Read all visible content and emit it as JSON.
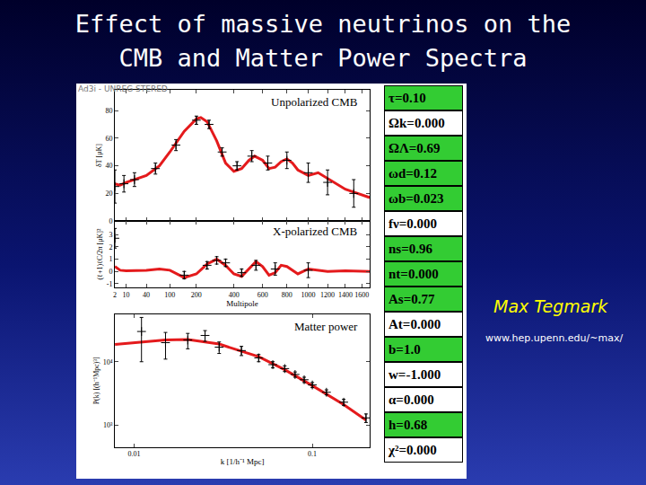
{
  "slide": {
    "title": [
      "Effect of massive neutrinos on the",
      "CMB and Matter Power Spectra"
    ],
    "author": "Max Tegmark",
    "url": "www.hep.upenn.edu/~max/",
    "watermark": "Ad3i - UNREG STERED",
    "parameters": [
      {
        "label": "τ=0.10",
        "color": "#33cc33"
      },
      {
        "label": "Ωk=0.000",
        "color": "#ffffff"
      },
      {
        "label": "ΩΛ=0.69",
        "color": "#33cc33"
      },
      {
        "label": "ωd=0.12",
        "color": "#33cc33"
      },
      {
        "label": "ωb=0.023",
        "color": "#33cc33"
      },
      {
        "label": "fν=0.000",
        "color": "#ffffff"
      },
      {
        "label": "ns=0.96",
        "color": "#33cc33"
      },
      {
        "label": "nt=0.000",
        "color": "#33cc33"
      },
      {
        "label": "As=0.77",
        "color": "#33cc33"
      },
      {
        "label": "At=0.000",
        "color": "#ffffff"
      },
      {
        "label": "b=1.0",
        "color": "#33cc33"
      },
      {
        "label": "w=-1.000",
        "color": "#ffffff"
      },
      {
        "label": "α=0.000",
        "color": "#ffffff"
      },
      {
        "label": "h=0.68",
        "color": "#33cc33"
      },
      {
        "label": "χ²=0.000",
        "color": "#ffffff"
      }
    ]
  },
  "chart_data": [
    {
      "type": "line",
      "title": "Unpolarized CMB",
      "y_label": "δT [μK]",
      "tick_labels": "y",
      "xlim": [
        2,
        1700
      ],
      "xticks": [
        2,
        10,
        40,
        100,
        200,
        400,
        600,
        800,
        1000,
        1200,
        1400,
        1600
      ],
      "ylim": [
        0,
        95
      ],
      "yticks": [
        0,
        20,
        40,
        60,
        80
      ],
      "series": [
        {
          "type": "line",
          "color": "#e41a1c",
          "line_style": "solid",
          "x": [
            2,
            5,
            10,
            20,
            40,
            70,
            100,
            150,
            200,
            220,
            250,
            300,
            350,
            400,
            450,
            500,
            540,
            600,
            650,
            700,
            750,
            800,
            850,
            900,
            1000,
            1100,
            1200,
            1300,
            1400,
            1500,
            1600,
            1700
          ],
          "values": [
            27,
            26,
            28,
            30,
            33,
            40,
            50,
            65,
            74,
            75,
            72,
            58,
            42,
            36,
            38,
            44,
            47,
            44,
            38,
            39,
            43,
            45,
            42,
            37,
            33,
            35,
            31,
            27,
            23,
            21,
            19,
            17
          ]
        },
        {
          "type": "scatter",
          "color": "#000000",
          "marker": "cross",
          "x": [
            2,
            8,
            20,
            60,
            120,
            200,
            260,
            330,
            420,
            520,
            640,
            800,
            1000,
            1200,
            1500
          ],
          "values": [
            25,
            27,
            30,
            38,
            55,
            73,
            70,
            50,
            40,
            47,
            42,
            44,
            35,
            28,
            20
          ],
          "error": [
            12,
            6,
            5,
            4,
            4,
            3,
            3,
            3,
            3,
            4,
            5,
            6,
            7,
            9,
            10
          ]
        }
      ]
    },
    {
      "type": "line",
      "title": "X-polarized CMB",
      "x_label": "Multipole",
      "y_label": "(ℓ+1)ℓC/2π [μK]²",
      "xlim": [
        2,
        1700
      ],
      "xticks": [
        2,
        10,
        40,
        100,
        200,
        400,
        600,
        800,
        1000,
        1200,
        1400,
        1600
      ],
      "ylim": [
        -1.3,
        4.1
      ],
      "yticks": [
        -1,
        0,
        1,
        2,
        3
      ],
      "series": [
        {
          "type": "line",
          "color": "#e41a1c",
          "line_style": "solid",
          "x": [
            2,
            5,
            10,
            20,
            40,
            70,
            100,
            150,
            200,
            250,
            300,
            350,
            400,
            450,
            500,
            550,
            600,
            650,
            700,
            750,
            800,
            900,
            1000,
            1100,
            1200,
            1400,
            1600,
            1700
          ],
          "values": [
            0.4,
            0.1,
            0.05,
            0.05,
            0.1,
            0.2,
            0.1,
            -0.5,
            -0.2,
            0.6,
            1.0,
            0.5,
            -0.2,
            -0.4,
            0.2,
            0.8,
            0.4,
            -0.3,
            -0.1,
            0.5,
            0.4,
            -0.2,
            0.2,
            0.1,
            0.0,
            0.05,
            0.02,
            0.0
          ]
        },
        {
          "type": "scatter",
          "color": "#000000",
          "marker": "cross",
          "x": [
            2,
            150,
            250,
            300,
            350,
            450,
            550,
            700,
            1000
          ],
          "values": [
            2.7,
            -0.3,
            0.5,
            0.9,
            0.7,
            -0.1,
            0.5,
            0.2,
            0.1
          ],
          "error": [
            0.8,
            0.3,
            0.3,
            0.3,
            0.3,
            0.3,
            0.4,
            0.5,
            0.6
          ]
        }
      ]
    },
    {
      "type": "line",
      "title": "Matter power",
      "x_label": "k [1/h⁻¹ Mpc]",
      "y_label": "P(k) [(h⁻¹Mpc)³]",
      "log": true,
      "xlim": [
        0.0078,
        0.21
      ],
      "xticks": [
        0.01,
        0.1
      ],
      "ylim": [
        450,
        56000
      ],
      "yticks": [
        {
          "value": 1000,
          "label": "10³"
        },
        {
          "value": 10000,
          "label": "10⁴"
        }
      ],
      "series": [
        {
          "type": "line",
          "color": "#e41a1c",
          "line_style": "solid",
          "x": [
            0.0078,
            0.01,
            0.015,
            0.02,
            0.03,
            0.05,
            0.07,
            0.1,
            0.15,
            0.2
          ],
          "values": [
            18800,
            20000,
            22000,
            22500,
            19000,
            12000,
            7500,
            4200,
            2100,
            1200
          ]
        },
        {
          "type": "scatter",
          "color": "#000000",
          "marker": "cross",
          "x": [
            0.011,
            0.015,
            0.02,
            0.025,
            0.03,
            0.04,
            0.05,
            0.06,
            0.07,
            0.08,
            0.09,
            0.1,
            0.12,
            0.15,
            0.2
          ],
          "values": [
            30000,
            20000,
            22000,
            26000,
            17000,
            15000,
            11500,
            9000,
            7800,
            6300,
            5200,
            4300,
            3300,
            2300,
            1300
          ],
          "error": [
            20000,
            9000,
            6000,
            5000,
            3500,
            2500,
            1500,
            1000,
            800,
            600,
            500,
            400,
            300,
            250,
            200
          ]
        }
      ]
    }
  ]
}
